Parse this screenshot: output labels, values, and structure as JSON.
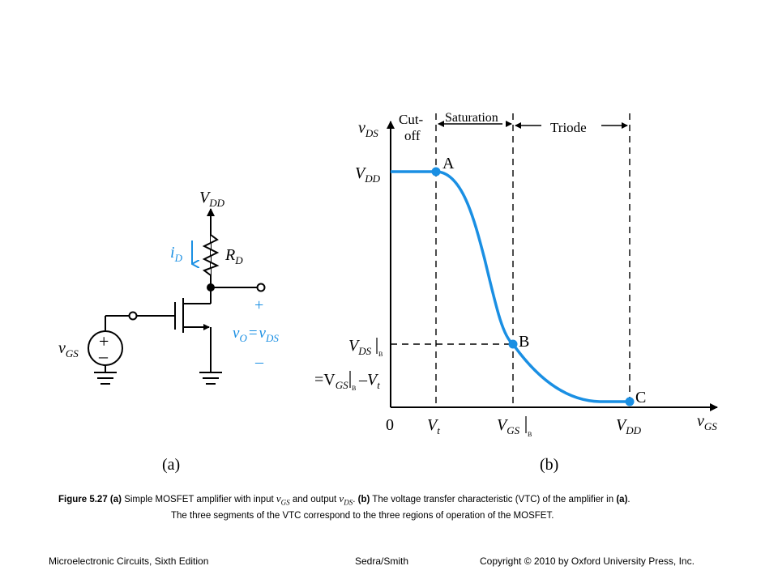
{
  "circuit": {
    "supply": "V",
    "supply_sub": "DD",
    "current": "i",
    "current_sub": "D",
    "resistor": "R",
    "resistor_sub": "D",
    "plus": "+",
    "minus": "–",
    "out_v": "v",
    "out_v_sub": "O",
    "out_eq": "=",
    "out_vds": "v",
    "out_vds_sub": "DS",
    "in_v": "v",
    "in_v_sub": "GS",
    "src_plus": "+",
    "src_minus": "–",
    "label": "(a)"
  },
  "chart_data": {
    "type": "line",
    "label": "(b)",
    "ylabel": "v",
    "ylabel_sub": "DS",
    "xlabel": "v",
    "xlabel_sub": "GS",
    "regions": {
      "cutoff_line1": "Cut-",
      "cutoff_line2": "off",
      "saturation": "Saturation",
      "triode": "Triode"
    },
    "y_ticks": {
      "vdd": "V",
      "vdd_sub": "DD",
      "vdsb": "V",
      "vdsb_sub": "DS",
      "vdsb_eval": "B",
      "eq_line": "=V",
      "eq_sub": "GS",
      "eq_eval": "B",
      "eq_rest": "–V",
      "eq_rest_sub": "t"
    },
    "x_ticks": {
      "zero": "0",
      "vt": "V",
      "vt_sub": "t",
      "vgsb": "V",
      "vgsb_sub": "GS",
      "vgsb_eval": "B",
      "vdd": "V",
      "vdd_sub": "DD"
    },
    "points": [
      {
        "label": "A"
      },
      {
        "label": "B"
      },
      {
        "label": "C"
      }
    ],
    "curve_color": "#1a8fe3"
  },
  "caption": {
    "fig": "Figure 5.27",
    "a": "(a)",
    "t1": "Simple MOSFET amplifier with input",
    "v1": "v",
    "v1_sub": "GS",
    "t2": "and output",
    "v2": "v",
    "v2_sub": "DS",
    "t3": ".",
    "b": "(b)",
    "t4": "The voltage transfer characteristic (VTC) of the amplifier in",
    "a2": "(a)",
    "t5": ".",
    "line2": "The three segments of the VTC correspond to the three regions of operation of the MOSFET."
  },
  "footer": {
    "left": "Microelectronic Circuits, Sixth Edition",
    "center": "Sedra/Smith",
    "right": "Copyright © 2010 by Oxford University Press, Inc."
  },
  "colors": {
    "accent": "#1a8fe3",
    "ink": "#000000"
  }
}
